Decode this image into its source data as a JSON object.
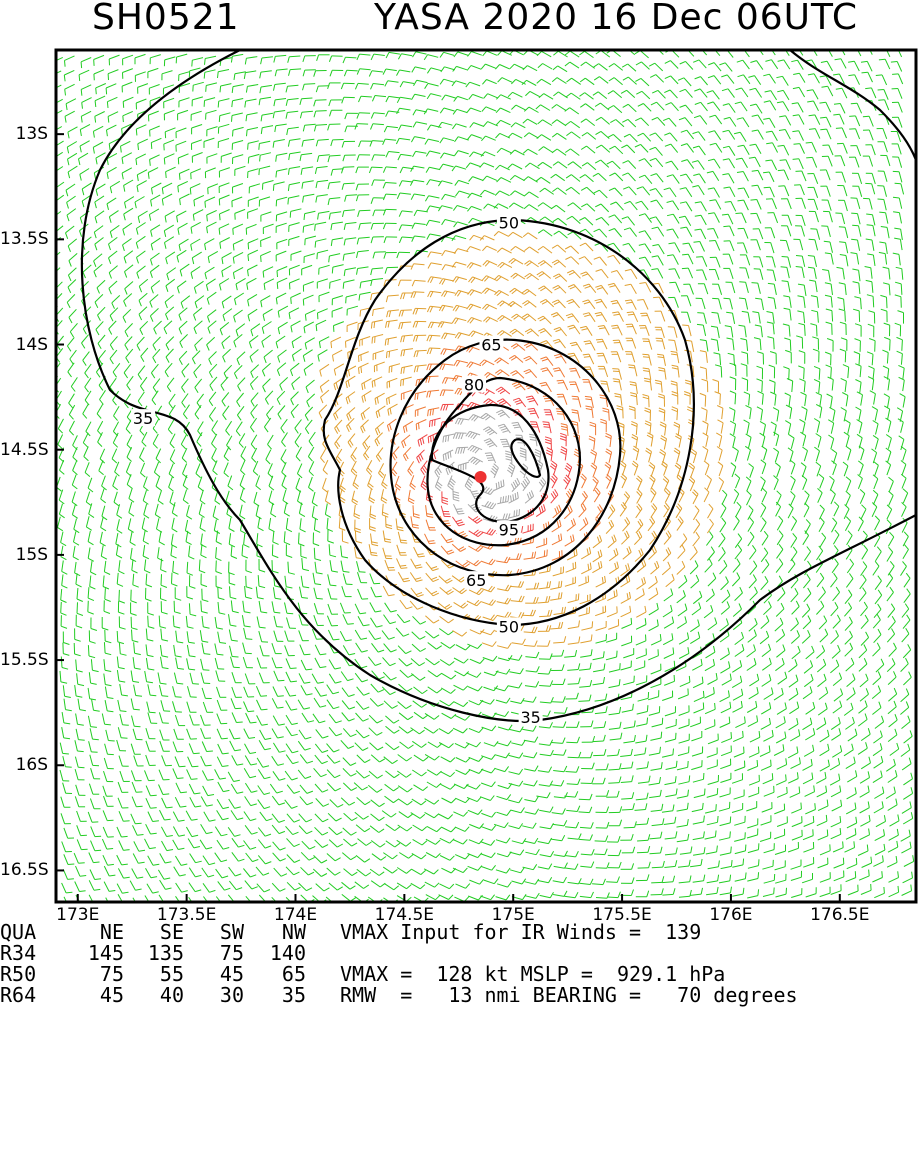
{
  "title": {
    "storm_id": "SH0521",
    "storm_info": "YASA 2020 16 Dec 06UTC"
  },
  "map": {
    "lon_range": [
      172.9,
      176.85
    ],
    "lat_range": [
      -12.6,
      -16.65
    ],
    "y_ticks": [
      {
        "lat": -13.0,
        "label": "13S"
      },
      {
        "lat": -13.5,
        "label": "13.5S"
      },
      {
        "lat": -14.0,
        "label": "14S"
      },
      {
        "lat": -14.5,
        "label": "14.5S"
      },
      {
        "lat": -15.0,
        "label": "15S"
      },
      {
        "lat": -15.5,
        "label": "15.5S"
      },
      {
        "lat": -16.0,
        "label": "16S"
      },
      {
        "lat": -16.5,
        "label": "16.5S"
      }
    ],
    "x_ticks": [
      {
        "lon": 173.0,
        "label": "173E"
      },
      {
        "lon": 173.5,
        "label": "173.5E"
      },
      {
        "lon": 174.0,
        "label": "174E"
      },
      {
        "lon": 174.5,
        "label": "174.5E"
      },
      {
        "lon": 175.0,
        "label": "175E"
      },
      {
        "lon": 175.5,
        "label": "175.5E"
      },
      {
        "lon": 176.0,
        "label": "176E"
      },
      {
        "lon": 176.5,
        "label": "176.5E"
      }
    ],
    "center": {
      "lon": 174.85,
      "lat": -14.63
    },
    "contours": [
      {
        "label": "35",
        "label_lon": 173.3,
        "label_lat": -14.35
      },
      {
        "label": "35",
        "label_lon": 175.08,
        "label_lat": -15.77
      },
      {
        "label": "50",
        "label_lon": 174.98,
        "label_lat": -13.42
      },
      {
        "label": "50",
        "label_lon": 174.98,
        "label_lat": -15.34
      },
      {
        "label": "65",
        "label_lon": 174.9,
        "label_lat": -14.0
      },
      {
        "label": "65",
        "label_lon": 174.83,
        "label_lat": -15.12
      },
      {
        "label": "80",
        "label_lon": 174.82,
        "label_lat": -14.19
      },
      {
        "label": "95",
        "label_lon": 174.98,
        "label_lat": -14.88
      }
    ],
    "wind_colors": {
      "lt35": "#22cc22",
      "35to50": "#e0a030",
      "50to65": "#ef7a35",
      "65to80": "#ef4545",
      "ge80": "#a8a8a8",
      "center": "#ee3333"
    }
  },
  "table": {
    "header": [
      "QUA",
      "NE",
      "SE",
      "SW",
      "NW"
    ],
    "rows": [
      {
        "name": "R34",
        "values": [
          "145",
          "135",
          "75",
          "140"
        ]
      },
      {
        "name": "R50",
        "values": [
          "75",
          "55",
          "45",
          "65"
        ]
      },
      {
        "name": "R64",
        "values": [
          "45",
          "40",
          "30",
          "35"
        ]
      }
    ],
    "info": [
      "VMAX Input for IR Winds =  139",
      "",
      "VMAX =  128 kt MSLP =  929.1 hPa",
      "RMW  =   13 nmi BEARING =   70 degrees"
    ]
  }
}
